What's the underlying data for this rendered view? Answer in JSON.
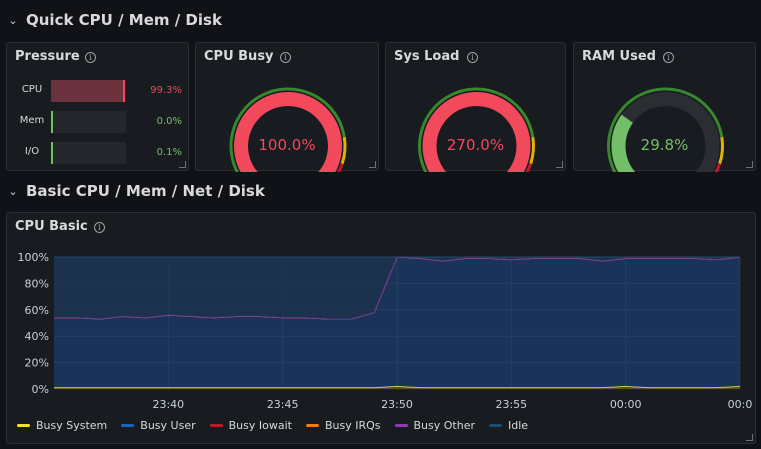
{
  "rows": [
    {
      "title": "Quick CPU / Mem / Disk"
    },
    {
      "title": "Basic CPU / Mem / Net / Disk"
    }
  ],
  "pressure": {
    "title": "Pressure",
    "items": [
      {
        "label": "CPU",
        "value": "99.3%",
        "fraction": 0.993,
        "color": "#f2495c"
      },
      {
        "label": "Mem",
        "value": "0.0%",
        "fraction": 0.0,
        "color": "#73bf69"
      },
      {
        "label": "I/O",
        "value": "0.1%",
        "fraction": 0.001,
        "color": "#73bf69"
      }
    ]
  },
  "gauges": [
    {
      "title": "CPU Busy",
      "value": "100.0%",
      "fraction": 1.0,
      "color": "#f2495c"
    },
    {
      "title": "Sys Load",
      "value": "270.0%",
      "fraction": 1.0,
      "color": "#f2495c"
    },
    {
      "title": "RAM Used",
      "value": "29.8%",
      "fraction": 0.298,
      "color": "#73bf69"
    }
  ],
  "cpu_basic": {
    "title": "CPU Basic",
    "legend": [
      {
        "name": "Busy System",
        "color": "#fade2a"
      },
      {
        "name": "Busy User",
        "color": "#1f60c4"
      },
      {
        "name": "Busy Iowait",
        "color": "#c4162a"
      },
      {
        "name": "Busy IRQs",
        "color": "#ff780a"
      },
      {
        "name": "Busy Other",
        "color": "#8f3bb8"
      },
      {
        "name": "Idle",
        "color": "#204a6e"
      }
    ]
  },
  "chart_data": {
    "type": "area",
    "title": "CPU Basic",
    "xlabel": "",
    "ylabel": "",
    "yticks": [
      "0%",
      "20%",
      "40%",
      "60%",
      "80%",
      "100%"
    ],
    "xticks": [
      "23:40",
      "23:45",
      "23:50",
      "23:55",
      "00:00",
      "00:0"
    ],
    "ylim": [
      0,
      100
    ],
    "x": [
      "23:35",
      "23:36",
      "23:37",
      "23:38",
      "23:39",
      "23:40",
      "23:41",
      "23:42",
      "23:43",
      "23:44",
      "23:45",
      "23:46",
      "23:47",
      "23:48",
      "23:49",
      "23:50",
      "23:51",
      "23:52",
      "23:53",
      "23:54",
      "23:55",
      "23:56",
      "23:57",
      "23:58",
      "23:59",
      "00:00",
      "00:01",
      "00:02",
      "00:03",
      "00:04",
      "00:05"
    ],
    "series": [
      {
        "name": "Busy System",
        "values": [
          1,
          1,
          1,
          1,
          1,
          1,
          1,
          1,
          1,
          1,
          1,
          1,
          1,
          1,
          1,
          2,
          1,
          1,
          1,
          1,
          1,
          1,
          1,
          1,
          1,
          2,
          1,
          1,
          1,
          1,
          2
        ]
      },
      {
        "name": "Busy User",
        "values": [
          53,
          53,
          52,
          54,
          53,
          55,
          54,
          53,
          54,
          54,
          53,
          53,
          52,
          52,
          57,
          98,
          98,
          96,
          98,
          98,
          97,
          98,
          98,
          98,
          96,
          97,
          98,
          98,
          98,
          97,
          98
        ]
      },
      {
        "name": "Busy Iowait",
        "values": [
          0,
          0,
          0,
          0,
          0,
          0,
          0,
          0,
          0,
          0,
          0,
          0,
          0,
          0,
          0,
          0,
          0,
          0,
          0,
          0,
          0,
          0,
          0,
          0,
          0,
          0,
          0,
          0,
          0,
          0,
          0
        ]
      },
      {
        "name": "Busy IRQs",
        "values": [
          0,
          0,
          0,
          0,
          0,
          0,
          0,
          0,
          0,
          0,
          0,
          0,
          0,
          0,
          0,
          0,
          0,
          0,
          0,
          0,
          0,
          0,
          0,
          0,
          0,
          0,
          0,
          0,
          0,
          0,
          0
        ]
      },
      {
        "name": "Busy Other",
        "values": [
          0,
          0,
          0,
          0,
          0,
          0,
          0,
          0,
          0,
          0,
          0,
          0,
          0,
          0,
          0,
          0,
          0,
          0,
          0,
          0,
          0,
          0,
          0,
          0,
          0,
          0,
          0,
          0,
          0,
          0,
          0
        ]
      },
      {
        "name": "Idle",
        "values": [
          46,
          46,
          47,
          45,
          46,
          44,
          45,
          46,
          45,
          45,
          46,
          46,
          47,
          47,
          42,
          0,
          1,
          3,
          1,
          1,
          2,
          1,
          1,
          1,
          3,
          1,
          1,
          1,
          1,
          2,
          0
        ]
      }
    ],
    "grid": true,
    "legend_position": "bottom"
  }
}
